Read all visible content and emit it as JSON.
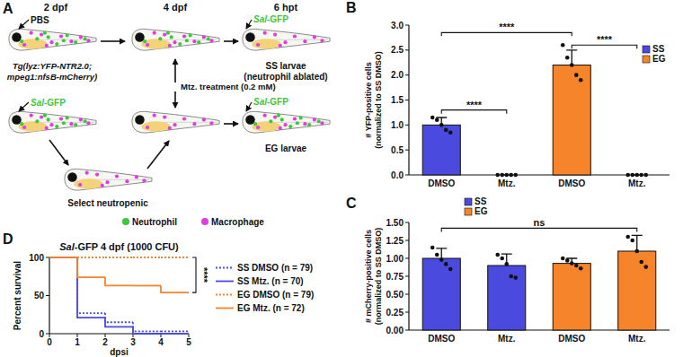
{
  "diagram": {
    "panel_label": "A",
    "stages": [
      "2 dpf",
      "4 dpf",
      "6 hpt"
    ],
    "mock_injection": "PBS",
    "infection": "Sal-GFP",
    "strain": [
      "Tg(lyz:YFP-NTR2.0;",
      "mpeg1:nfsB-mCherry)"
    ],
    "treatment": "Mtz. treatment (0.2 mM)",
    "ss_result": [
      "SS larvae",
      "(neutrophil ablated)"
    ],
    "eg_result": "EG larvae",
    "selection": "Select neutropenic",
    "cell_types": [
      {
        "name": "Neutrophil",
        "color": "#3cc83c"
      },
      {
        "name": "Macrophage",
        "color": "#e03ce0"
      }
    ]
  },
  "chart_data": [
    {
      "type": "bar",
      "panel_label": "B",
      "y_label": [
        "# YFP-positive cells",
        "(normalized to SS DMSO)"
      ],
      "categories": [
        "DMSO",
        "Mtz.",
        "DMSO",
        "Mtz."
      ],
      "series": [
        {
          "name": "SS",
          "color": "#4a4ade",
          "values": [
            1.0,
            0,
            null,
            null
          ],
          "errors": [
            0.15,
            0,
            null,
            null
          ],
          "points": [
            [
              1.15,
              1.1,
              1.0,
              0.9,
              0.85
            ],
            [
              0,
              0,
              0,
              0,
              0
            ],
            null,
            null
          ]
        },
        {
          "name": "EG",
          "color": "#f5842a",
          "values": [
            null,
            null,
            2.2,
            0
          ],
          "errors": [
            null,
            null,
            0.3,
            0
          ],
          "points": [
            null,
            null,
            [
              2.6,
              2.35,
              2.2,
              2.0,
              1.9
            ],
            [
              0,
              0,
              0,
              0,
              0
            ]
          ]
        }
      ],
      "ylim": [
        0,
        3
      ],
      "yticks": [
        {
          "value": 0,
          "label": "0.0"
        },
        {
          "value": 0.5,
          "label": "0.5"
        },
        {
          "value": 1,
          "label": "1.0"
        },
        {
          "value": 1.5,
          "label": "1.5"
        },
        {
          "value": 2,
          "label": "2.0"
        },
        {
          "value": 2.5,
          "label": "2.5"
        },
        {
          "value": 3,
          "label": "3.0"
        }
      ],
      "legend": "top-right",
      "grid": false,
      "annotations": [
        {
          "text": "****",
          "between": [
            0,
            1
          ],
          "y": 1.3
        },
        {
          "text": "****",
          "between": [
            0,
            2
          ],
          "y": 2.85
        },
        {
          "text": "****",
          "between": [
            2,
            3
          ],
          "y": 2.6
        }
      ]
    },
    {
      "type": "bar",
      "panel_label": "C",
      "y_label": [
        "# mCherry-positive cells",
        "(normalized to SS DMSO)"
      ],
      "categories": [
        "DMSO",
        "Mtz.",
        "DMSO",
        "Mtz."
      ],
      "series": [
        {
          "name": "SS",
          "color": "#4a4ade",
          "values": [
            1.0,
            0.9,
            null,
            null
          ],
          "errors": [
            0.14,
            0.16,
            null,
            null
          ],
          "points": [
            [
              1.15,
              1.05,
              0.98,
              0.92,
              0.85
            ],
            [
              1.05,
              1.0,
              0.92,
              0.75,
              0.73
            ],
            null,
            null
          ]
        },
        {
          "name": "EG",
          "color": "#f5842a",
          "values": [
            null,
            null,
            0.93,
            1.1
          ],
          "errors": [
            null,
            null,
            0.07,
            0.22
          ],
          "points": [
            null,
            null,
            [
              1.0,
              0.97,
              0.93,
              0.9,
              0.86
            ],
            [
              1.3,
              1.25,
              1.1,
              0.95,
              0.88
            ]
          ]
        }
      ],
      "ylim": [
        0,
        1.5
      ],
      "yticks": [
        {
          "value": 0,
          "label": "0.00"
        },
        {
          "value": 0.25,
          "label": "0.25"
        },
        {
          "value": 0.5,
          "label": "0.50"
        },
        {
          "value": 0.75,
          "label": "0.75"
        },
        {
          "value": 1,
          "label": "1.00"
        },
        {
          "value": 1.25,
          "label": "1.25"
        },
        {
          "value": 1.5,
          "label": "1.50"
        }
      ],
      "legend": "top-left",
      "grid": false,
      "annotations": [
        {
          "text": "ns",
          "between": [
            0,
            3
          ],
          "y": 1.42
        }
      ]
    },
    {
      "type": "step",
      "panel_label": "D",
      "title": "Sal-GFP 4 dpf (1000 CFU)",
      "x_label": "dpsi",
      "y_label": "Percent survival",
      "x": [
        0,
        1,
        2,
        3,
        4,
        5
      ],
      "xlim": [
        0,
        5
      ],
      "xticks": [
        0,
        1,
        2,
        3,
        4,
        5
      ],
      "ylim": [
        0,
        100
      ],
      "yticks": [
        0,
        50,
        100
      ],
      "legend": "right",
      "grid": false,
      "series": [
        {
          "name": "SS DMSO (n = 79)",
          "color": "#4a4ade",
          "line_style": "dotted",
          "values": [
            100,
            27,
            15,
            3,
            3,
            3
          ]
        },
        {
          "name": "SS Mtz. (n = 70)",
          "color": "#4a4ade",
          "line_style": "solid",
          "values": [
            100,
            21,
            9,
            0,
            0,
            0
          ]
        },
        {
          "name": "EG DMSO (n = 79)",
          "color": "#f5842a",
          "line_style": "dotted",
          "values": [
            100,
            100,
            100,
            100,
            100,
            100
          ]
        },
        {
          "name": "EG Mtz. (n = 72)",
          "color": "#f5842a",
          "line_style": "solid",
          "values": [
            100,
            74,
            63,
            63,
            54,
            54
          ]
        }
      ],
      "annotations": [
        {
          "text": "****",
          "between": [
            2,
            3
          ]
        }
      ]
    }
  ]
}
